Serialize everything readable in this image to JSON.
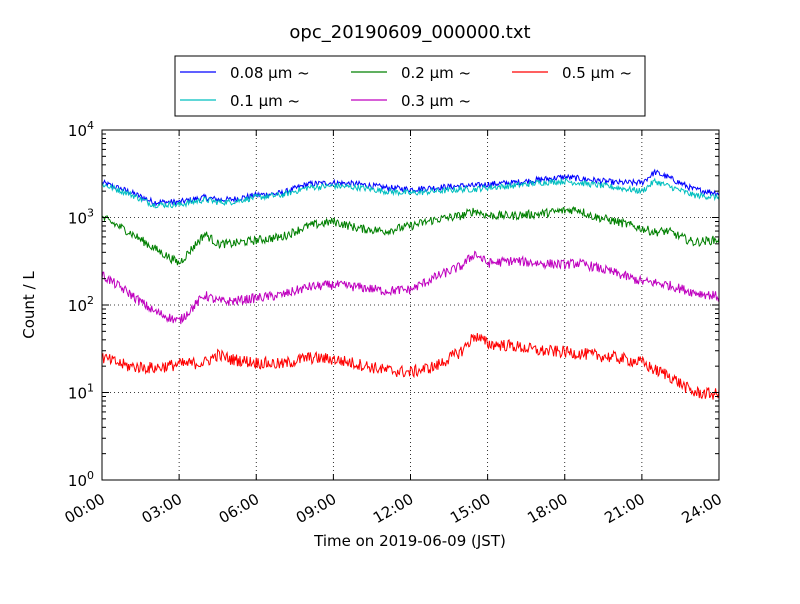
{
  "chart_data": {
    "type": "line",
    "title": "opc_20190609_000000.txt",
    "xlabel": "Time on 2019-06-09 (JST)",
    "ylabel": "Count / L",
    "xlim": [
      0,
      24
    ],
    "ylim": [
      1,
      10000
    ],
    "yscale": "log",
    "grid": true,
    "legend_position": "top-center",
    "x_ticks": [
      {
        "v": 0,
        "label": "00:00"
      },
      {
        "v": 3,
        "label": "03:00"
      },
      {
        "v": 6,
        "label": "06:00"
      },
      {
        "v": 9,
        "label": "09:00"
      },
      {
        "v": 12,
        "label": "12:00"
      },
      {
        "v": 15,
        "label": "15:00"
      },
      {
        "v": 18,
        "label": "18:00"
      },
      {
        "v": 21,
        "label": "21:00"
      },
      {
        "v": 24,
        "label": "24:00"
      }
    ],
    "y_ticks": [
      {
        "v": 1,
        "base": "10",
        "exp": "0"
      },
      {
        "v": 10,
        "base": "10",
        "exp": "1"
      },
      {
        "v": 100,
        "base": "10",
        "exp": "2"
      },
      {
        "v": 1000,
        "base": "10",
        "exp": "3"
      },
      {
        "v": 10000,
        "base": "10",
        "exp": "4"
      }
    ],
    "x": [
      0,
      1,
      2,
      3,
      4,
      4.5,
      5,
      6,
      7,
      8,
      9,
      10,
      11,
      12,
      13,
      14,
      14.5,
      15,
      16,
      17,
      18,
      18.5,
      19,
      20,
      21,
      21.5,
      22,
      23,
      24
    ],
    "series": [
      {
        "name": "0.08 μm ~",
        "color": "#0000ff",
        "noise": 0.035,
        "values": [
          2500,
          2000,
          1500,
          1500,
          1700,
          1600,
          1600,
          1800,
          1900,
          2400,
          2500,
          2400,
          2200,
          2100,
          2200,
          2300,
          2300,
          2400,
          2500,
          2700,
          2900,
          2800,
          2700,
          2500,
          2500,
          3300,
          2900,
          2100,
          1900
        ]
      },
      {
        "name": "0.1 μm ~",
        "color": "#00bfbf",
        "noise": 0.035,
        "values": [
          2400,
          1900,
          1400,
          1400,
          1600,
          1500,
          1500,
          1700,
          1800,
          2200,
          2300,
          2200,
          2000,
          1900,
          2000,
          2100,
          2100,
          2200,
          2300,
          2500,
          2600,
          2500,
          2400,
          2200,
          2000,
          2600,
          2300,
          1800,
          1700
        ]
      },
      {
        "name": "0.2 μm ~",
        "color": "#008000",
        "noise": 0.05,
        "values": [
          1000,
          700,
          450,
          300,
          650,
          500,
          500,
          550,
          600,
          800,
          900,
          750,
          700,
          800,
          950,
          1050,
          1200,
          1050,
          1050,
          1100,
          1200,
          1250,
          1050,
          900,
          750,
          680,
          700,
          520,
          560
        ]
      },
      {
        "name": "0.3 μm ~",
        "color": "#bf00bf",
        "noise": 0.055,
        "values": [
          220,
          140,
          85,
          65,
          130,
          110,
          110,
          120,
          130,
          160,
          170,
          160,
          145,
          150,
          210,
          280,
          390,
          300,
          320,
          300,
          290,
          300,
          280,
          230,
          185,
          180,
          170,
          140,
          125
        ]
      },
      {
        "name": "0.5 μm ~",
        "color": "#ff0000",
        "noise": 0.07,
        "values": [
          25,
          20,
          19,
          21,
          22,
          27,
          24,
          22,
          21,
          25,
          24,
          21,
          18,
          17,
          20,
          30,
          45,
          36,
          34,
          30,
          29,
          28,
          27,
          25,
          22,
          18,
          16,
          10,
          9.5
        ]
      }
    ]
  }
}
